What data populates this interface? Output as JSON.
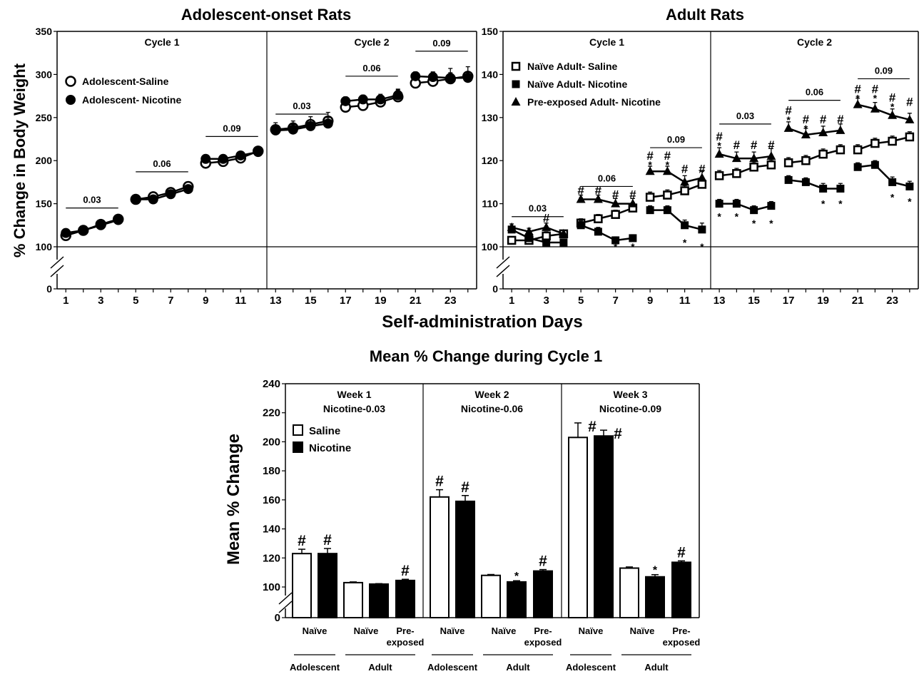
{
  "figure": {
    "xlabel": "Self-administration Days",
    "panel_a_title": "Adolescent-onset Rats",
    "panel_b_title": "Adult Rats",
    "panel_c_title": "Mean % Change during Cycle 1",
    "ylabel_top": "% Change in Body Weight",
    "ylabel_bottom": "Mean % Change"
  },
  "chart_data": [
    {
      "type": "line",
      "id": "adolescent",
      "title": "Adolescent-onset Rats",
      "xlabel": "Self-administration Days",
      "ylabel": "% Change in Body Weight",
      "ylim": [
        100,
        350
      ],
      "y_break": true,
      "y_ticks": [
        100,
        150,
        200,
        250,
        300,
        350
      ],
      "x_ticks": [
        1,
        3,
        5,
        7,
        9,
        11,
        13,
        15,
        17,
        19,
        21,
        23
      ],
      "cycle_labels": [
        "Cycle 1",
        "Cycle 2"
      ],
      "dose_labels": [
        {
          "label": "0.03",
          "from": 1,
          "to": 4,
          "y": 145
        },
        {
          "label": "0.06",
          "from": 5,
          "to": 8,
          "y": 187
        },
        {
          "label": "0.09",
          "from": 9,
          "to": 12,
          "y": 228
        },
        {
          "label": "0.03",
          "from": 13,
          "to": 16,
          "y": 254
        },
        {
          "label": "0.06",
          "from": 17,
          "to": 20,
          "y": 298
        },
        {
          "label": "0.09",
          "from": 21,
          "to": 24,
          "y": 327
        }
      ],
      "legend": "top-left",
      "series": [
        {
          "name": "Adolescent-Saline",
          "marker": "circle-open",
          "x": [
            1,
            2,
            3,
            4,
            5,
            6,
            7,
            8,
            9,
            10,
            11,
            12,
            13,
            14,
            15,
            16,
            17,
            18,
            19,
            20,
            21,
            22,
            23,
            24
          ],
          "y": [
            113,
            119,
            126,
            132,
            155,
            158,
            163,
            170,
            197,
            199,
            203,
            211,
            236,
            238,
            242,
            246,
            262,
            264,
            268,
            274,
            290,
            292,
            295,
            298
          ],
          "err": [
            2,
            2,
            2,
            2,
            3,
            3,
            3,
            4,
            3,
            3,
            5,
            5,
            8,
            8,
            9,
            10,
            5,
            6,
            7,
            9,
            10,
            10,
            12,
            11
          ]
        },
        {
          "name": "Adolescent- Nicotine",
          "marker": "circle-filled",
          "x": [
            1,
            2,
            3,
            4,
            5,
            6,
            7,
            8,
            9,
            10,
            11,
            12,
            13,
            14,
            15,
            16,
            17,
            18,
            19,
            20,
            21,
            22,
            23,
            24
          ],
          "y": [
            116,
            119,
            125,
            131,
            155,
            155,
            161,
            167,
            202,
            202,
            206,
            210,
            235,
            236,
            240,
            243,
            269,
            271,
            271,
            276,
            298,
            297,
            296,
            296
          ],
          "err": [
            2,
            2,
            2,
            2,
            3,
            3,
            3,
            3,
            3,
            3,
            4,
            4,
            6,
            6,
            7,
            7,
            5,
            5,
            6,
            6,
            5,
            6,
            6,
            6
          ]
        }
      ]
    },
    {
      "type": "line",
      "id": "adult",
      "title": "Adult Rats",
      "xlabel": "Self-administration Days",
      "ylim": [
        100,
        150
      ],
      "y_break": true,
      "y_ticks": [
        100,
        110,
        120,
        130,
        140,
        150
      ],
      "x_ticks": [
        1,
        3,
        5,
        7,
        9,
        11,
        13,
        15,
        17,
        19,
        21,
        23
      ],
      "cycle_labels": [
        "Cycle 1",
        "Cycle 2"
      ],
      "dose_labels": [
        {
          "label": "0.03",
          "from": 1,
          "to": 4,
          "y": 107
        },
        {
          "label": "0.06",
          "from": 5,
          "to": 8,
          "y": 114
        },
        {
          "label": "0.09",
          "from": 9,
          "to": 12,
          "y": 123
        },
        {
          "label": "0.03",
          "from": 13,
          "to": 16,
          "y": 128.5
        },
        {
          "label": "0.06",
          "from": 17,
          "to": 20,
          "y": 134
        },
        {
          "label": "0.09",
          "from": 21,
          "to": 24,
          "y": 139
        }
      ],
      "legend": "top-left",
      "series": [
        {
          "name": "Naïve Adult- Saline",
          "marker": "square-open",
          "x": [
            1,
            2,
            3,
            4,
            5,
            6,
            7,
            8,
            9,
            10,
            11,
            12,
            13,
            14,
            15,
            16,
            17,
            18,
            19,
            20,
            21,
            22,
            23,
            24
          ],
          "y": [
            101.5,
            101.5,
            102.5,
            103,
            105.5,
            106.5,
            107.5,
            109,
            111.5,
            112,
            113,
            114.5,
            116.5,
            117,
            118.5,
            119,
            119.5,
            120,
            121.5,
            122.5,
            122.5,
            124,
            124.5,
            125.5
          ],
          "err": [
            0.8,
            0.8,
            1,
            0.8,
            1,
            1,
            1,
            1.2,
            1.2,
            1.2,
            1.2,
            1.2,
            1.2,
            1.2,
            1.2,
            1.2,
            1.2,
            1.2,
            1.2,
            1.2,
            1.2,
            1.2,
            1.2,
            1.2
          ]
        },
        {
          "name": "Naïve Adult- Nicotine",
          "marker": "square-filled",
          "x": [
            1,
            2,
            3,
            4,
            5,
            6,
            7,
            8,
            9,
            10,
            11,
            12,
            13,
            14,
            15,
            16,
            17,
            18,
            19,
            20,
            21,
            22,
            23,
            24
          ],
          "y": [
            104,
            102,
            101,
            101,
            105,
            103.5,
            101.5,
            102,
            108.5,
            108.5,
            105,
            104,
            110,
            110,
            108.5,
            109.5,
            115.5,
            115,
            113.5,
            113.5,
            118.5,
            119,
            115,
            114
          ],
          "err": [
            0.8,
            0.8,
            0.8,
            0.8,
            1,
            1,
            0.8,
            0.8,
            1,
            1,
            1.2,
            1.5,
            1,
            1,
            1,
            1,
            1,
            1,
            1.2,
            1.2,
            1,
            1,
            1.2,
            1.2
          ]
        },
        {
          "name": "Pre-exposed Adult- Nicotine",
          "marker": "triangle-filled",
          "x": [
            1,
            2,
            3,
            4,
            5,
            6,
            7,
            8,
            9,
            10,
            11,
            12,
            13,
            14,
            15,
            16,
            17,
            18,
            19,
            20,
            21,
            22,
            23,
            24
          ],
          "y": [
            104.5,
            103.5,
            104.5,
            103,
            111,
            111,
            110,
            110,
            117.5,
            117.5,
            115,
            116,
            121.5,
            120.5,
            120.5,
            121,
            127.5,
            126,
            126.5,
            127,
            133,
            132,
            130.5,
            129.5
          ],
          "err": [
            0.8,
            0.8,
            1,
            0.8,
            1,
            1,
            1.2,
            1.2,
            1.2,
            1.2,
            1.5,
            1.5,
            1.5,
            1.5,
            1.5,
            1.8,
            1.5,
            1.5,
            1.5,
            1.5,
            1.5,
            1.5,
            1.5,
            1.5
          ]
        }
      ],
      "marks": [
        {
          "x": 3,
          "y": 106.5,
          "sym": "#"
        },
        {
          "x": 5,
          "y": 113,
          "sym": "#"
        },
        {
          "x": 5,
          "y": 111.5,
          "sym": "*"
        },
        {
          "x": 6,
          "y": 113,
          "sym": "#"
        },
        {
          "x": 6,
          "y": 111.5,
          "sym": "*"
        },
        {
          "x": 7,
          "y": 112,
          "sym": "#"
        },
        {
          "x": 8,
          "y": 112,
          "sym": "#"
        },
        {
          "x": 7,
          "y": 100.5,
          "sym": "*"
        },
        {
          "x": 8,
          "y": 100.5,
          "sym": "*"
        },
        {
          "x": 9,
          "y": 121,
          "sym": "#"
        },
        {
          "x": 9,
          "y": 119.5,
          "sym": "*"
        },
        {
          "x": 10,
          "y": 121,
          "sym": "#"
        },
        {
          "x": 10,
          "y": 119.5,
          "sym": "*"
        },
        {
          "x": 11,
          "y": 118,
          "sym": "#"
        },
        {
          "x": 12,
          "y": 118,
          "sym": "#"
        },
        {
          "x": 11,
          "y": 101.5,
          "sym": "*"
        },
        {
          "x": 12,
          "y": 100.5,
          "sym": "*"
        },
        {
          "x": 13,
          "y": 125.5,
          "sym": "#"
        },
        {
          "x": 13,
          "y": 124,
          "sym": "*"
        },
        {
          "x": 14,
          "y": 123.5,
          "sym": "#"
        },
        {
          "x": 15,
          "y": 123.5,
          "sym": "#"
        },
        {
          "x": 16,
          "y": 123.5,
          "sym": "#"
        },
        {
          "x": 13,
          "y": 107.5,
          "sym": "*"
        },
        {
          "x": 14,
          "y": 107.5,
          "sym": "*"
        },
        {
          "x": 15,
          "y": 106,
          "sym": "*"
        },
        {
          "x": 16,
          "y": 106,
          "sym": "*"
        },
        {
          "x": 17,
          "y": 131.5,
          "sym": "#"
        },
        {
          "x": 17,
          "y": 130,
          "sym": "*"
        },
        {
          "x": 18,
          "y": 129.5,
          "sym": "#"
        },
        {
          "x": 18,
          "y": 128,
          "sym": "*"
        },
        {
          "x": 19,
          "y": 129.5,
          "sym": "#"
        },
        {
          "x": 20,
          "y": 129.5,
          "sym": "#"
        },
        {
          "x": 19,
          "y": 110.5,
          "sym": "*"
        },
        {
          "x": 20,
          "y": 110.5,
          "sym": "*"
        },
        {
          "x": 21,
          "y": 136.5,
          "sym": "#"
        },
        {
          "x": 21,
          "y": 135,
          "sym": "*"
        },
        {
          "x": 22,
          "y": 136.5,
          "sym": "#"
        },
        {
          "x": 22,
          "y": 135,
          "sym": "*"
        },
        {
          "x": 23,
          "y": 134.5,
          "sym": "#"
        },
        {
          "x": 23,
          "y": 133,
          "sym": "*"
        },
        {
          "x": 24,
          "y": 133.5,
          "sym": "#"
        },
        {
          "x": 23,
          "y": 112,
          "sym": "*"
        },
        {
          "x": 24,
          "y": 111,
          "sym": "*"
        }
      ]
    },
    {
      "type": "bar",
      "id": "cycle1",
      "title": "Mean % Change during Cycle 1",
      "ylabel": "Mean % Change",
      "ylim": [
        100,
        240
      ],
      "y_break": true,
      "y_ticks": [
        100,
        120,
        140,
        160,
        180,
        200,
        220,
        240
      ],
      "legend": [
        "Saline",
        "Nicotine"
      ],
      "groups": [
        {
          "week": "Week 1",
          "dose": "Nicotine-0.03",
          "subgroups": [
            {
              "cat": "Naïve",
              "age": "Adolescent",
              "saline": 123,
              "saline_err": 3,
              "nicotine": 123,
              "nicotine_err": 3.5,
              "marks": [
                "#",
                "#"
              ]
            },
            {
              "cat": "Naïve",
              "age": "Adult",
              "saline": 103,
              "saline_err": 0.5,
              "nicotine": 102,
              "nicotine_err": 0.3,
              "marks": [
                "",
                ""
              ]
            },
            {
              "cat": "Pre-\nexposed",
              "age": "Adult",
              "nicotine": 104.5,
              "nicotine_err": 0.8,
              "marks": [
                "#"
              ]
            }
          ]
        },
        {
          "week": "Week 2",
          "dose": "Nicotine-0.06",
          "subgroups": [
            {
              "cat": "Naïve",
              "age": "Adolescent",
              "saline": 162,
              "saline_err": 5,
              "nicotine": 159,
              "nicotine_err": 4,
              "marks": [
                "#",
                "#"
              ]
            },
            {
              "cat": "Naïve",
              "age": "Adult",
              "saline": 108,
              "saline_err": 0.6,
              "nicotine": 103.5,
              "nicotine_err": 0.8,
              "marks": [
                "",
                "*"
              ]
            },
            {
              "cat": "Pre-\nexposed",
              "age": "Adult",
              "nicotine": 111,
              "nicotine_err": 1,
              "marks": [
                "#"
              ]
            }
          ]
        },
        {
          "week": "Week 3",
          "dose": "Nicotine-0.09",
          "subgroups": [
            {
              "cat": "Naïve",
              "age": "Adolescent",
              "saline": 203,
              "saline_err": 10,
              "nicotine": 204,
              "nicotine_err": 4,
              "marks": [
                "#",
                "#"
              ]
            },
            {
              "cat": "Naïve",
              "age": "Adult",
              "saline": 113,
              "saline_err": 0.8,
              "nicotine": 107,
              "nicotine_err": 1.5,
              "marks": [
                "",
                "*"
              ]
            },
            {
              "cat": "Pre-\nexposed",
              "age": "Adult",
              "nicotine": 117,
              "nicotine_err": 1,
              "marks": [
                "#"
              ]
            }
          ]
        }
      ]
    }
  ]
}
